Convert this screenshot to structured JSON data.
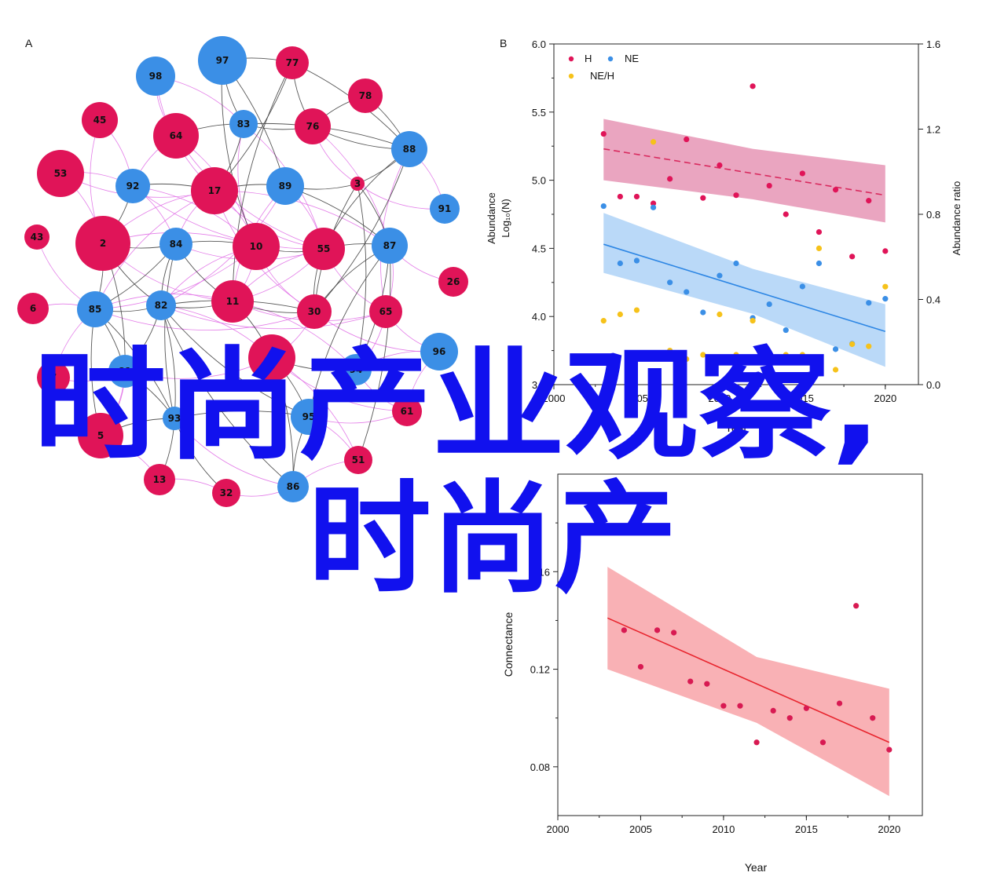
{
  "panels": {
    "a_label": "A",
    "b_label": "B"
  },
  "colors": {
    "h": "#e01458",
    "ne": "#3b8fe6",
    "neh": "#f6c21a",
    "edge_dark": "#444444",
    "edge_pink": "#e06ee6",
    "overlay": "#1111ee",
    "fit_red": "#e8252e",
    "band_red": "#f8a9ad"
  },
  "chart_data": [
    {
      "id": "network",
      "type": "network",
      "node_types": [
        "red",
        "blue"
      ],
      "nodes": [
        {
          "id": "97",
          "type": "blue"
        },
        {
          "id": "77",
          "type": "red"
        },
        {
          "id": "98",
          "type": "blue"
        },
        {
          "id": "78",
          "type": "red"
        },
        {
          "id": "45",
          "type": "red"
        },
        {
          "id": "64",
          "type": "red"
        },
        {
          "id": "83",
          "type": "blue"
        },
        {
          "id": "76",
          "type": "red"
        },
        {
          "id": "88",
          "type": "blue"
        },
        {
          "id": "53",
          "type": "red"
        },
        {
          "id": "92",
          "type": "blue"
        },
        {
          "id": "17",
          "type": "red"
        },
        {
          "id": "89",
          "type": "blue"
        },
        {
          "id": "3",
          "type": "red"
        },
        {
          "id": "91",
          "type": "blue"
        },
        {
          "id": "43",
          "type": "red"
        },
        {
          "id": "2",
          "type": "red"
        },
        {
          "id": "84",
          "type": "blue"
        },
        {
          "id": "10",
          "type": "red"
        },
        {
          "id": "55",
          "type": "red"
        },
        {
          "id": "87",
          "type": "blue"
        },
        {
          "id": "26",
          "type": "red"
        },
        {
          "id": "6",
          "type": "red"
        },
        {
          "id": "85",
          "type": "blue"
        },
        {
          "id": "82",
          "type": "blue"
        },
        {
          "id": "11",
          "type": "red"
        },
        {
          "id": "30",
          "type": "red"
        },
        {
          "id": "65",
          "type": "red"
        },
        {
          "id": "96",
          "type": "blue"
        },
        {
          "id": "7",
          "type": "red"
        },
        {
          "id": "81",
          "type": "blue"
        },
        {
          "id": "1",
          "type": "red"
        },
        {
          "id": "94",
          "type": "blue"
        },
        {
          "id": "93",
          "type": "blue"
        },
        {
          "id": "95",
          "type": "blue"
        },
        {
          "id": "61",
          "type": "red"
        },
        {
          "id": "5",
          "type": "red"
        },
        {
          "id": "51",
          "type": "red"
        },
        {
          "id": "13",
          "type": "red"
        },
        {
          "id": "32",
          "type": "red"
        },
        {
          "id": "86",
          "type": "blue"
        }
      ]
    },
    {
      "id": "abundance",
      "type": "scatter",
      "xlabel": "Year",
      "ylabel_line1": "Abundance",
      "ylabel_line2": "Log₁₀(N)",
      "y2label": "Abundance ratio",
      "xlim": [
        2000,
        2022
      ],
      "ylim": [
        3.5,
        6.0
      ],
      "y2lim": [
        0.0,
        1.6
      ],
      "xticks": [
        "2000",
        "2005",
        "2010",
        "2015",
        "2020"
      ],
      "yticks": [
        "3.5",
        "4.0",
        "4.5",
        "5.0",
        "5.5",
        "6.0"
      ],
      "y2ticks": [
        "0.0",
        "0.4",
        "0.8",
        "1.2",
        "1.6"
      ],
      "legend_position": "top-left",
      "series": [
        {
          "name": "H",
          "axis": "left",
          "x": [
            2003,
            2004,
            2005,
            2006,
            2007,
            2008,
            2009,
            2010,
            2011,
            2012,
            2013,
            2014,
            2015,
            2016,
            2017,
            2018,
            2019,
            2020
          ],
          "y": [
            5.34,
            4.88,
            4.88,
            4.83,
            5.01,
            5.3,
            4.87,
            5.11,
            4.89,
            5.69,
            4.96,
            4.75,
            5.05,
            4.62,
            4.93,
            4.44,
            4.85,
            4.48
          ],
          "fit": {
            "x": [
              2003,
              2020
            ],
            "y": [
              5.23,
              4.89
            ]
          },
          "band": {
            "x": [
              2003,
              2012,
              2020
            ],
            "upper": [
              5.45,
              5.23,
              5.11
            ],
            "lower": [
              5.0,
              4.86,
              4.69
            ]
          }
        },
        {
          "name": "NE",
          "axis": "left",
          "x": [
            2003,
            2004,
            2005,
            2006,
            2007,
            2008,
            2009,
            2010,
            2011,
            2012,
            2013,
            2014,
            2015,
            2016,
            2017,
            2018,
            2019,
            2020
          ],
          "y": [
            4.81,
            4.39,
            4.41,
            4.8,
            4.25,
            4.18,
            4.03,
            4.3,
            4.39,
            3.99,
            4.09,
            3.9,
            4.22,
            4.39,
            3.76,
            3.8,
            4.1,
            4.13
          ],
          "fit": {
            "x": [
              2003,
              2020
            ],
            "y": [
              4.53,
              3.89
            ]
          },
          "band": {
            "x": [
              2003,
              2012,
              2020
            ],
            "upper": [
              4.76,
              4.35,
              4.09
            ],
            "lower": [
              4.32,
              4.02,
              3.63
            ]
          }
        },
        {
          "name": "NE/H",
          "axis": "right",
          "x": [
            2003,
            2004,
            2005,
            2006,
            2007,
            2008,
            2009,
            2010,
            2011,
            2012,
            2013,
            2014,
            2015,
            2016,
            2017,
            2018,
            2019,
            2020
          ],
          "y": [
            0.3,
            0.33,
            0.35,
            1.14,
            0.16,
            0.12,
            0.14,
            0.33,
            0.14,
            0.3,
            0.14,
            0.14,
            0.14,
            0.64,
            0.07,
            0.19,
            0.18,
            0.46
          ]
        }
      ]
    },
    {
      "id": "connectance",
      "type": "scatter",
      "xlabel": "Year",
      "ylabel": "Connectance",
      "xlim": [
        2000,
        2022
      ],
      "ylim": [
        0.06,
        0.2
      ],
      "xticks": [
        "2000",
        "2005",
        "2010",
        "2015",
        "2020"
      ],
      "yticks": [
        "0.08",
        "0.12",
        "0.16"
      ],
      "series": [
        {
          "x": [
            2004,
            2005,
            2006,
            2007,
            2008,
            2009,
            2010,
            2011,
            2012,
            2013,
            2014,
            2015,
            2016,
            2017,
            2018,
            2019,
            2020
          ],
          "y": [
            0.136,
            0.121,
            0.136,
            0.135,
            0.115,
            0.114,
            0.105,
            0.105,
            0.09,
            0.103,
            0.1,
            0.104,
            0.09,
            0.106,
            0.146,
            0.1,
            0.087
          ],
          "fit": {
            "x": [
              2003,
              2020
            ],
            "y": [
              0.141,
              0.09
            ]
          },
          "band": {
            "x": [
              2003,
              2012,
              2020
            ],
            "upper": [
              0.162,
              0.125,
              0.112
            ],
            "lower": [
              0.12,
              0.098,
              0.068
            ]
          }
        }
      ]
    }
  ],
  "overlay": {
    "line1": "时尚产业观察,",
    "line2": "时尚产"
  }
}
